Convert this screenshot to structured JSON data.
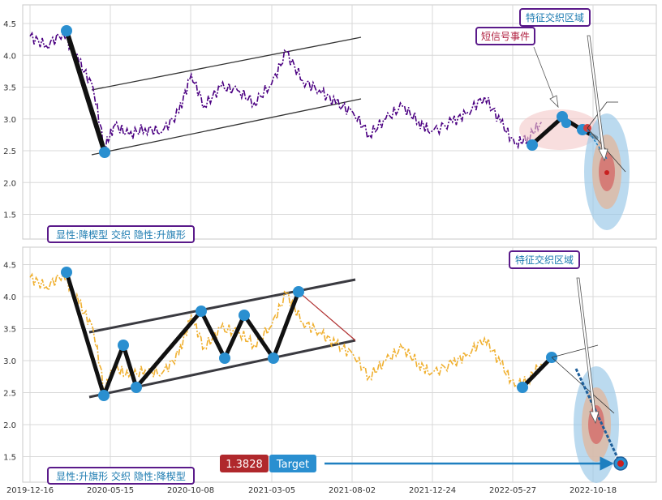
{
  "colors": {
    "top_price": "#4b0082",
    "bottom_price": "#f0b030",
    "pattern": "#111111",
    "channel": "#333333",
    "marker": "#2a8fd0",
    "label_text": "#1a7ab0",
    "label_border": "#5a1a8a",
    "signal_text": "#b02040",
    "value_badge": "#b0282c",
    "target_badge": "#2a8fd0",
    "arrow": "#1e7fc0",
    "ellipse_outer": "#9ecbe8",
    "ellipse_mid": "#e0b8a0",
    "ellipse_inner": "#d46060",
    "ellipse_center": "#c82020",
    "event_ellipse": "#f4c8c8"
  },
  "x_ticks": [
    "2019-12-16",
    "2020-05-15",
    "2020-10-08",
    "2021-03-05",
    "2021-08-02",
    "2021-12-24",
    "2022-05-27",
    "2022-10-18"
  ],
  "panels": {
    "top": {
      "y_ticks": [
        "1.5",
        "2.0",
        "2.5",
        "3.0",
        "3.5",
        "4.0",
        "4.5"
      ],
      "ylim": [
        1.1,
        4.8
      ],
      "label": "显性:降楔型 交织 隐性:升旗形",
      "region_label": "特征交织区域",
      "signal_label": "短信号事件"
    },
    "bottom": {
      "y_ticks": [
        "1.5",
        "2.0",
        "2.5",
        "3.0",
        "3.5",
        "4.0",
        "4.5"
      ],
      "ylim": [
        1.1,
        4.8
      ],
      "label": "显性:升旗形 交织 隐性:降楔型",
      "region_label": "特征交织区域",
      "value_badge": "1.3828",
      "target_badge": "Target"
    }
  },
  "chart_data": [
    {
      "type": "line",
      "series": [
        {
          "x": [
            "2019-12-16",
            "2020-01-15",
            "2020-02-15",
            "2020-03-15",
            "2020-04-10",
            "2020-05-01",
            "2020-05-20",
            "2020-06-15",
            "2020-07-15",
            "2020-08-15",
            "2020-09-15",
            "2020-10-08",
            "2020-11-01",
            "2020-12-01",
            "2021-01-01",
            "2021-02-01",
            "2021-03-05",
            "2021-04-01",
            "2021-05-01",
            "2021-06-01",
            "2021-07-01",
            "2021-08-02",
            "2021-09-01",
            "2021-10-01",
            "2021-11-01",
            "2021-12-01",
            "2021-12-24",
            "2022-02-01",
            "2022-03-01",
            "2022-04-01",
            "2022-05-01",
            "2022-05-27",
            "2022-06-20",
            "2022-07-15"
          ],
          "values": [
            4.3,
            4.15,
            4.35,
            3.9,
            3.5,
            2.55,
            2.9,
            2.75,
            2.85,
            2.8,
            3.1,
            3.7,
            3.2,
            3.5,
            3.45,
            3.25,
            3.55,
            4.05,
            3.6,
            3.45,
            3.25,
            3.1,
            2.75,
            3.0,
            3.2,
            2.95,
            2.8,
            2.95,
            3.1,
            3.35,
            2.95,
            2.6,
            2.7,
            2.95
          ]
        }
      ],
      "patterns": [
        {
          "name": "descending-wedge",
          "points": [
            [
              "2020-01-15",
              4.38
            ],
            [
              "2020-05-15",
              2.46
            ]
          ]
        },
        {
          "name": "forecast",
          "points": [
            [
              "2022-06-20",
              2.58
            ],
            [
              "2022-08-05",
              3.05
            ],
            [
              "2022-08-25",
              2.85
            ],
            [
              "2022-09-15",
              2.78
            ]
          ]
        }
      ],
      "target_center": [
        2.16
      ],
      "ylim": [
        1.1,
        4.8
      ]
    },
    {
      "type": "line",
      "series": [
        {
          "x": [
            "2019-12-16",
            "2020-01-15",
            "2020-02-15",
            "2020-03-15",
            "2020-04-10",
            "2020-05-01",
            "2020-05-20",
            "2020-06-15",
            "2020-07-15",
            "2020-08-15",
            "2020-09-15",
            "2020-10-08",
            "2020-11-01",
            "2020-12-01",
            "2021-01-01",
            "2021-02-01",
            "2021-03-05",
            "2021-04-01",
            "2021-05-01",
            "2021-06-01",
            "2021-07-01",
            "2021-08-02",
            "2021-09-01",
            "2021-10-01",
            "2021-11-01",
            "2021-12-01",
            "2021-12-24",
            "2022-02-01",
            "2022-03-01",
            "2022-04-01",
            "2022-05-01",
            "2022-05-27",
            "2022-06-20",
            "2022-07-15"
          ],
          "values": [
            4.3,
            4.15,
            4.35,
            3.9,
            3.5,
            2.55,
            2.9,
            2.75,
            2.85,
            2.8,
            3.1,
            3.7,
            3.2,
            3.5,
            3.45,
            3.25,
            3.55,
            4.05,
            3.6,
            3.45,
            3.25,
            3.1,
            2.75,
            3.0,
            3.2,
            2.95,
            2.8,
            2.95,
            3.1,
            3.35,
            2.95,
            2.6,
            2.7,
            2.95
          ]
        }
      ],
      "patterns": [
        {
          "name": "ascending-flag",
          "points": [
            [
              "2020-01-15",
              4.36
            ],
            [
              "2020-05-15",
              2.46
            ],
            [
              "2020-06-15",
              3.23
            ],
            [
              "2020-07-05",
              2.58
            ],
            [
              "2020-10-08",
              3.76
            ],
            [
              "2020-11-15",
              3.03
            ],
            [
              "2020-12-25",
              3.7
            ],
            [
              "2021-02-15",
              3.03
            ],
            [
              "2021-03-15",
              4.08
            ]
          ]
        },
        {
          "name": "forecast",
          "points": [
            [
              "2022-06-20",
              2.58
            ],
            [
              "2022-08-05",
              3.05
            ]
          ]
        }
      ],
      "target": 1.3828,
      "ylim": [
        1.1,
        4.8
      ]
    }
  ]
}
